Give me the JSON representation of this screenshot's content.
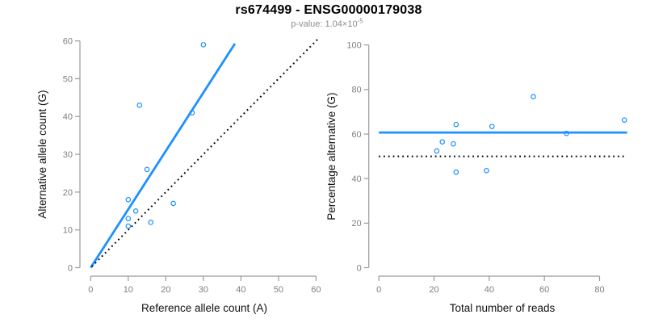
{
  "header": {
    "title": "rs674499 - ENSG00000179038",
    "subtitle_prefix": "p-value: 1.04×10",
    "subtitle_exponent": "-5"
  },
  "colors": {
    "blue": "#1E90FF",
    "black": "#000000",
    "axis_line": "#9a9a9a",
    "tick_label": "#7f7f7f",
    "axis_title": "#111111"
  },
  "chart_data": [
    {
      "type": "scatter",
      "xlabel": "Reference allele count (A)",
      "ylabel": "Alternative allele count (G)",
      "xlim": [
        0,
        60
      ],
      "ylim": [
        0,
        60
      ],
      "xticks": [
        0,
        10,
        20,
        30,
        40,
        50,
        60
      ],
      "yticks": [
        0,
        10,
        20,
        30,
        40,
        50,
        60
      ],
      "grid": false,
      "points": [
        [
          10,
          11
        ],
        [
          10,
          13
        ],
        [
          12,
          15
        ],
        [
          10,
          18
        ],
        [
          16,
          12
        ],
        [
          22,
          17
        ],
        [
          15,
          26
        ],
        [
          13,
          43
        ],
        [
          27,
          41
        ],
        [
          30,
          59
        ]
      ],
      "lines": [
        {
          "name": "fit-line",
          "style": "solid",
          "color": "blue",
          "x1": 0,
          "y1": 0,
          "x2": 38.4,
          "y2": 59.3
        },
        {
          "name": "identity-line",
          "style": "dotted",
          "color": "black",
          "x1": 0.3,
          "y1": 0.3,
          "x2": 60.9,
          "y2": 60.9
        }
      ]
    },
    {
      "type": "scatter",
      "xlabel": "Total number of reads",
      "ylabel": "Percentage alternative (G)",
      "xlim": [
        0,
        90
      ],
      "ylim": [
        0,
        100
      ],
      "xticks": [
        0,
        20,
        40,
        60,
        80
      ],
      "yticks": [
        0,
        20,
        40,
        60,
        80,
        100
      ],
      "grid": false,
      "points": [
        [
          21,
          52.4
        ],
        [
          23,
          56.5
        ],
        [
          27,
          55.6
        ],
        [
          28,
          64.3
        ],
        [
          28,
          42.9
        ],
        [
          39,
          43.6
        ],
        [
          41,
          63.4
        ],
        [
          56,
          76.8
        ],
        [
          68,
          60.3
        ],
        [
          89,
          66.3
        ]
      ],
      "lines": [
        {
          "name": "mean-line",
          "style": "solid",
          "color": "blue",
          "x1": 0,
          "y1": 60.7,
          "x2": 90,
          "y2": 60.7
        },
        {
          "name": "null-line",
          "style": "dotted",
          "color": "black",
          "x1": 0,
          "y1": 50,
          "x2": 90,
          "y2": 50
        }
      ]
    }
  ]
}
